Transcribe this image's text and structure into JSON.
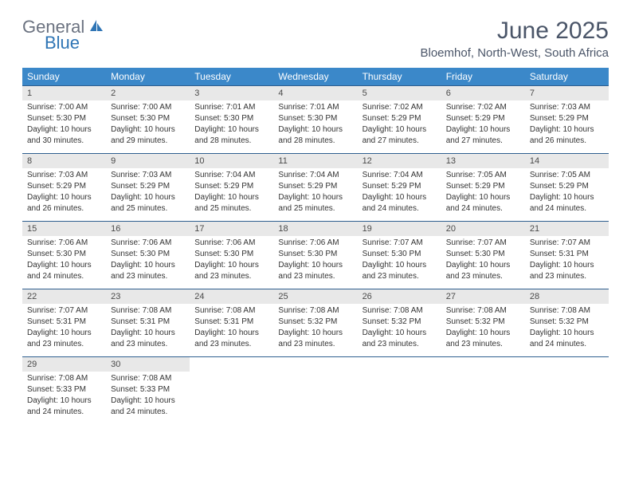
{
  "logo": {
    "text_general": "General",
    "text_blue": "Blue"
  },
  "title": "June 2025",
  "location": "Bloemhof, North-West, South Africa",
  "colors": {
    "header_bg": "#3b88c9",
    "header_fg": "#ffffff",
    "date_bg": "#e8e8e8",
    "border": "#2f5f8f",
    "title_color": "#4a5568",
    "logo_gray": "#6b7280",
    "logo_blue": "#2f75b5"
  },
  "day_names": [
    "Sunday",
    "Monday",
    "Tuesday",
    "Wednesday",
    "Thursday",
    "Friday",
    "Saturday"
  ],
  "weeks": [
    {
      "dates": [
        "1",
        "2",
        "3",
        "4",
        "5",
        "6",
        "7"
      ],
      "cells": [
        {
          "sunrise": "Sunrise: 7:00 AM",
          "sunset": "Sunset: 5:30 PM",
          "daylight": "Daylight: 10 hours and 30 minutes."
        },
        {
          "sunrise": "Sunrise: 7:00 AM",
          "sunset": "Sunset: 5:30 PM",
          "daylight": "Daylight: 10 hours and 29 minutes."
        },
        {
          "sunrise": "Sunrise: 7:01 AM",
          "sunset": "Sunset: 5:30 PM",
          "daylight": "Daylight: 10 hours and 28 minutes."
        },
        {
          "sunrise": "Sunrise: 7:01 AM",
          "sunset": "Sunset: 5:30 PM",
          "daylight": "Daylight: 10 hours and 28 minutes."
        },
        {
          "sunrise": "Sunrise: 7:02 AM",
          "sunset": "Sunset: 5:29 PM",
          "daylight": "Daylight: 10 hours and 27 minutes."
        },
        {
          "sunrise": "Sunrise: 7:02 AM",
          "sunset": "Sunset: 5:29 PM",
          "daylight": "Daylight: 10 hours and 27 minutes."
        },
        {
          "sunrise": "Sunrise: 7:03 AM",
          "sunset": "Sunset: 5:29 PM",
          "daylight": "Daylight: 10 hours and 26 minutes."
        }
      ]
    },
    {
      "dates": [
        "8",
        "9",
        "10",
        "11",
        "12",
        "13",
        "14"
      ],
      "cells": [
        {
          "sunrise": "Sunrise: 7:03 AM",
          "sunset": "Sunset: 5:29 PM",
          "daylight": "Daylight: 10 hours and 26 minutes."
        },
        {
          "sunrise": "Sunrise: 7:03 AM",
          "sunset": "Sunset: 5:29 PM",
          "daylight": "Daylight: 10 hours and 25 minutes."
        },
        {
          "sunrise": "Sunrise: 7:04 AM",
          "sunset": "Sunset: 5:29 PM",
          "daylight": "Daylight: 10 hours and 25 minutes."
        },
        {
          "sunrise": "Sunrise: 7:04 AM",
          "sunset": "Sunset: 5:29 PM",
          "daylight": "Daylight: 10 hours and 25 minutes."
        },
        {
          "sunrise": "Sunrise: 7:04 AM",
          "sunset": "Sunset: 5:29 PM",
          "daylight": "Daylight: 10 hours and 24 minutes."
        },
        {
          "sunrise": "Sunrise: 7:05 AM",
          "sunset": "Sunset: 5:29 PM",
          "daylight": "Daylight: 10 hours and 24 minutes."
        },
        {
          "sunrise": "Sunrise: 7:05 AM",
          "sunset": "Sunset: 5:29 PM",
          "daylight": "Daylight: 10 hours and 24 minutes."
        }
      ]
    },
    {
      "dates": [
        "15",
        "16",
        "17",
        "18",
        "19",
        "20",
        "21"
      ],
      "cells": [
        {
          "sunrise": "Sunrise: 7:06 AM",
          "sunset": "Sunset: 5:30 PM",
          "daylight": "Daylight: 10 hours and 24 minutes."
        },
        {
          "sunrise": "Sunrise: 7:06 AM",
          "sunset": "Sunset: 5:30 PM",
          "daylight": "Daylight: 10 hours and 23 minutes."
        },
        {
          "sunrise": "Sunrise: 7:06 AM",
          "sunset": "Sunset: 5:30 PM",
          "daylight": "Daylight: 10 hours and 23 minutes."
        },
        {
          "sunrise": "Sunrise: 7:06 AM",
          "sunset": "Sunset: 5:30 PM",
          "daylight": "Daylight: 10 hours and 23 minutes."
        },
        {
          "sunrise": "Sunrise: 7:07 AM",
          "sunset": "Sunset: 5:30 PM",
          "daylight": "Daylight: 10 hours and 23 minutes."
        },
        {
          "sunrise": "Sunrise: 7:07 AM",
          "sunset": "Sunset: 5:30 PM",
          "daylight": "Daylight: 10 hours and 23 minutes."
        },
        {
          "sunrise": "Sunrise: 7:07 AM",
          "sunset": "Sunset: 5:31 PM",
          "daylight": "Daylight: 10 hours and 23 minutes."
        }
      ]
    },
    {
      "dates": [
        "22",
        "23",
        "24",
        "25",
        "26",
        "27",
        "28"
      ],
      "cells": [
        {
          "sunrise": "Sunrise: 7:07 AM",
          "sunset": "Sunset: 5:31 PM",
          "daylight": "Daylight: 10 hours and 23 minutes."
        },
        {
          "sunrise": "Sunrise: 7:08 AM",
          "sunset": "Sunset: 5:31 PM",
          "daylight": "Daylight: 10 hours and 23 minutes."
        },
        {
          "sunrise": "Sunrise: 7:08 AM",
          "sunset": "Sunset: 5:31 PM",
          "daylight": "Daylight: 10 hours and 23 minutes."
        },
        {
          "sunrise": "Sunrise: 7:08 AM",
          "sunset": "Sunset: 5:32 PM",
          "daylight": "Daylight: 10 hours and 23 minutes."
        },
        {
          "sunrise": "Sunrise: 7:08 AM",
          "sunset": "Sunset: 5:32 PM",
          "daylight": "Daylight: 10 hours and 23 minutes."
        },
        {
          "sunrise": "Sunrise: 7:08 AM",
          "sunset": "Sunset: 5:32 PM",
          "daylight": "Daylight: 10 hours and 23 minutes."
        },
        {
          "sunrise": "Sunrise: 7:08 AM",
          "sunset": "Sunset: 5:32 PM",
          "daylight": "Daylight: 10 hours and 24 minutes."
        }
      ]
    },
    {
      "dates": [
        "29",
        "30",
        "",
        "",
        "",
        "",
        ""
      ],
      "cells": [
        {
          "sunrise": "Sunrise: 7:08 AM",
          "sunset": "Sunset: 5:33 PM",
          "daylight": "Daylight: 10 hours and 24 minutes."
        },
        {
          "sunrise": "Sunrise: 7:08 AM",
          "sunset": "Sunset: 5:33 PM",
          "daylight": "Daylight: 10 hours and 24 minutes."
        },
        {
          "sunrise": "",
          "sunset": "",
          "daylight": ""
        },
        {
          "sunrise": "",
          "sunset": "",
          "daylight": ""
        },
        {
          "sunrise": "",
          "sunset": "",
          "daylight": ""
        },
        {
          "sunrise": "",
          "sunset": "",
          "daylight": ""
        },
        {
          "sunrise": "",
          "sunset": "",
          "daylight": ""
        }
      ]
    }
  ]
}
